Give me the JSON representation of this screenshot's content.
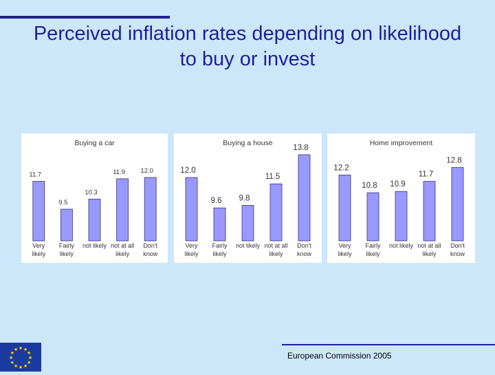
{
  "title": "Perceived inflation rates depending on likelihood to buy or invest",
  "footer": "European Commission 2005",
  "colors": {
    "bar_fill": "#9999ff",
    "bar_stroke": "#33337a",
    "title": "#1f1f9a",
    "background": "#cce7fa",
    "flag": "#1a3aa0",
    "star": "#ffdd00"
  },
  "chart_data": [
    {
      "type": "bar",
      "title": "Buying a car",
      "categories": [
        "Very likely",
        "Fairly likely",
        "not likely",
        "not at all likely",
        "Don't know"
      ],
      "values": [
        11.7,
        9.5,
        10.3,
        11.9,
        12.0
      ],
      "labels": [
        "11.7",
        "9.5",
        "10.3",
        "11.9",
        "12.0"
      ],
      "ylim": [
        7,
        14.5
      ]
    },
    {
      "type": "bar",
      "title": "Buying a house",
      "categories": [
        "Very likely",
        "Fairly likely",
        "not likely",
        "not at all likely",
        "Don't know"
      ],
      "values": [
        12.0,
        9.6,
        9.8,
        11.5,
        13.8
      ],
      "labels": [
        "12.0",
        "9.6",
        "9.8",
        "11.5",
        "13.8"
      ],
      "ylim": [
        7,
        14.5
      ]
    },
    {
      "type": "bar",
      "title": "Home improvement",
      "categories": [
        "Very likely",
        "Fairly likely",
        "not likely",
        "not at all likely",
        "Don't know"
      ],
      "values": [
        12.2,
        10.8,
        10.9,
        11.7,
        12.8
      ],
      "labels": [
        "12.2",
        "10.8",
        "10.9",
        "11.7",
        "12.8"
      ],
      "ylim": [
        7,
        14.5
      ]
    }
  ]
}
